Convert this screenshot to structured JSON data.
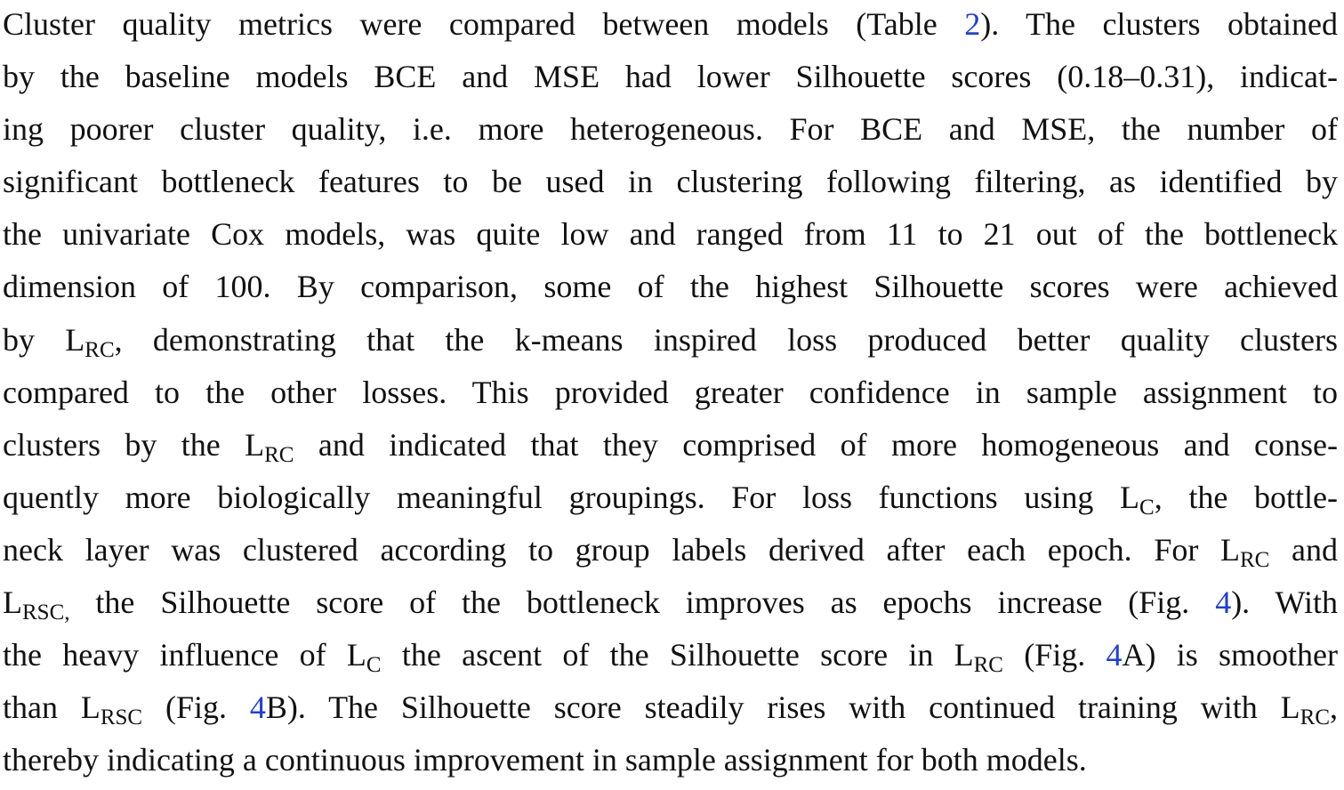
{
  "colors": {
    "text": "#111111",
    "link": "#1f3fd6",
    "background": "#ffffff"
  },
  "paragraph": {
    "lines": [
      {
        "segments": [
          {
            "t": "text",
            "v": "Cluster quality metrics were compared between models (Table "
          },
          {
            "t": "ref",
            "v": "2"
          },
          {
            "t": "text",
            "v": "). The clusters obtained"
          }
        ]
      },
      {
        "segments": [
          {
            "t": "text",
            "v": "by the baseline models BCE and MSE had lower Silhouette scores (0.18–0.31), indicat-"
          }
        ]
      },
      {
        "segments": [
          {
            "t": "text",
            "v": "ing poorer cluster quality, i.e. more heterogeneous. For BCE and MSE, the number of"
          }
        ]
      },
      {
        "segments": [
          {
            "t": "text",
            "v": "significant bottleneck features to be used in clustering following filtering, as identified by"
          }
        ]
      },
      {
        "segments": [
          {
            "t": "text",
            "v": "the univariate Cox models, was quite low and ranged from 11 to 21 out of the bottleneck"
          }
        ]
      },
      {
        "segments": [
          {
            "t": "text",
            "v": "dimension of 100. By comparison, some of the highest Silhouette scores were achieved"
          }
        ]
      },
      {
        "segments": [
          {
            "t": "text",
            "v": "by L"
          },
          {
            "t": "sub",
            "v": "RC"
          },
          {
            "t": "text",
            "v": ", demonstrating that the k-means inspired loss produced better quality clusters"
          }
        ]
      },
      {
        "segments": [
          {
            "t": "text",
            "v": "compared to the other losses. This provided greater confidence in sample assignment to"
          }
        ]
      },
      {
        "segments": [
          {
            "t": "text",
            "v": "clusters by the L"
          },
          {
            "t": "sub",
            "v": "RC"
          },
          {
            "t": "text",
            "v": " and indicated that they comprised of more homogeneous and conse-"
          }
        ]
      },
      {
        "segments": [
          {
            "t": "text",
            "v": "quently more biologically meaningful groupings. For loss functions using L"
          },
          {
            "t": "sub",
            "v": "C"
          },
          {
            "t": "text",
            "v": ", the bottle-"
          }
        ]
      },
      {
        "segments": [
          {
            "t": "text",
            "v": "neck layer was clustered according to group labels derived after each epoch. For L"
          },
          {
            "t": "sub",
            "v": "RC"
          },
          {
            "t": "text",
            "v": " and"
          }
        ]
      },
      {
        "segments": [
          {
            "t": "text",
            "v": "L"
          },
          {
            "t": "sub",
            "v": "RSC,"
          },
          {
            "t": "text",
            "v": " the Silhouette score of the bottleneck improves as epochs increase (Fig. "
          },
          {
            "t": "ref",
            "v": "4"
          },
          {
            "t": "text",
            "v": "). With"
          }
        ]
      },
      {
        "segments": [
          {
            "t": "text",
            "v": "the heavy influence of L"
          },
          {
            "t": "sub",
            "v": "C"
          },
          {
            "t": "text",
            "v": " the ascent of the Silhouette score in L"
          },
          {
            "t": "sub",
            "v": "RC"
          },
          {
            "t": "text",
            "v": " (Fig. "
          },
          {
            "t": "ref",
            "v": "4"
          },
          {
            "t": "text",
            "v": "A) is smoother"
          }
        ]
      },
      {
        "segments": [
          {
            "t": "text",
            "v": "than L"
          },
          {
            "t": "sub",
            "v": "RSC"
          },
          {
            "t": "text",
            "v": " (Fig. "
          },
          {
            "t": "ref",
            "v": "4"
          },
          {
            "t": "text",
            "v": "B). The Silhouette score steadily rises with continued training with L"
          },
          {
            "t": "sub",
            "v": "RC"
          },
          {
            "t": "text",
            "v": ","
          }
        ]
      },
      {
        "segments": [
          {
            "t": "text",
            "v": "thereby indicating a continuous improvement in sample assignment for both models."
          }
        ]
      }
    ]
  }
}
